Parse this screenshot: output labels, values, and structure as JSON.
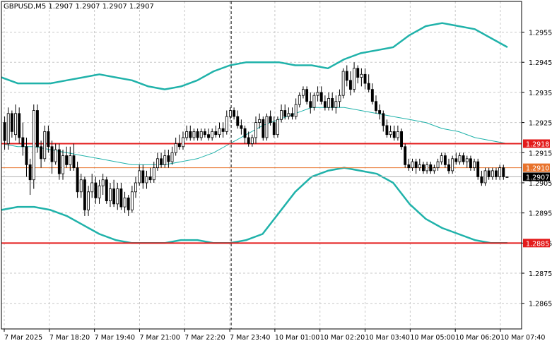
{
  "chart_data": {
    "type": "candlestick",
    "title": "GBPUSD,M5  1.2907 1.2907 1.2907 1.2907",
    "ylim": [
      1.28565,
      1.29652
    ],
    "grid": true,
    "y_ticks": [
      "1.2955",
      "1.2945",
      "1.2935",
      "1.2925",
      "1.2915",
      "1.2905",
      "1.2895",
      "1.2885",
      "1.2875",
      "1.2865"
    ],
    "x_ticks": [
      "7 Mar 2025",
      "7 Mar 18:20",
      "7 Mar 19:40",
      "7 Mar 21:00",
      "7 Mar 22:20",
      "7 Mar 23:40",
      "10 Mar 01:00",
      "10 Mar 02:20",
      "10 Mar 03:40",
      "10 Mar 05:00",
      "10 Mar 06:20",
      "10 Mar 07:40"
    ],
    "levels": [
      {
        "value": 1.2918,
        "label": "1.2918",
        "color": "#e31b1b"
      },
      {
        "value": 1.2885,
        "label": "1.2885",
        "color": "#e31b1b"
      },
      {
        "value": 1.291,
        "label": "1.2910",
        "color": "#e8732c"
      }
    ],
    "current_price": {
      "value": 1.2907,
      "label": "1.2907",
      "color": "#000000"
    },
    "bollinger": {
      "upper": [
        1.294,
        1.2938,
        1.2938,
        1.2938,
        1.2939,
        1.294,
        1.2941,
        1.294,
        1.2939,
        1.2937,
        1.2936,
        1.2937,
        1.2939,
        1.2942,
        1.2944,
        1.2945,
        1.2945,
        1.2945,
        1.2944,
        1.2944,
        1.2943,
        1.2946,
        1.2948,
        1.2949,
        1.295,
        1.2954,
        1.2957,
        1.2958,
        1.2957,
        1.2956,
        1.2953,
        1.295
      ],
      "middle": [
        1.2918,
        1.2917,
        1.2917,
        1.2916,
        1.2915,
        1.2914,
        1.2913,
        1.2912,
        1.2911,
        1.2911,
        1.2911,
        1.2912,
        1.2913,
        1.2915,
        1.2918,
        1.2921,
        1.2924,
        1.2926,
        1.2928,
        1.293,
        1.293,
        1.293,
        1.2929,
        1.2928,
        1.2927,
        1.2926,
        1.2925,
        1.2923,
        1.2922,
        1.292,
        1.2919,
        1.2918
      ],
      "lower": [
        1.2896,
        1.2897,
        1.2897,
        1.2896,
        1.2894,
        1.2891,
        1.2888,
        1.2886,
        1.2885,
        1.2885,
        1.2885,
        1.2886,
        1.2886,
        1.2885,
        1.2885,
        1.2886,
        1.2888,
        1.2895,
        1.2902,
        1.2907,
        1.2909,
        1.291,
        1.2909,
        1.2908,
        1.2905,
        1.2898,
        1.2893,
        1.289,
        1.2888,
        1.2886,
        1.2885,
        1.2885
      ]
    },
    "candles": [
      [
        1.2925,
        1.2927,
        1.2916,
        1.2919
      ],
      [
        1.2918,
        1.293,
        1.2916,
        1.2928
      ],
      [
        1.2928,
        1.2929,
        1.292,
        1.2922
      ],
      [
        1.2921,
        1.2931,
        1.2919,
        1.2928
      ],
      [
        1.2928,
        1.293,
        1.2918,
        1.292
      ],
      [
        1.292,
        1.2925,
        1.2914,
        1.2917
      ],
      [
        1.2917,
        1.292,
        1.2907,
        1.2911
      ],
      [
        1.2911,
        1.2913,
        1.2901,
        1.2906
      ],
      [
        1.2906,
        1.2931,
        1.2903,
        1.2929
      ],
      [
        1.2929,
        1.2931,
        1.2915,
        1.2917
      ],
      [
        1.2917,
        1.2919,
        1.291,
        1.2913
      ],
      [
        1.2913,
        1.2924,
        1.2912,
        1.2922
      ],
      [
        1.2922,
        1.2924,
        1.2915,
        1.2917
      ],
      [
        1.2917,
        1.2919,
        1.2908,
        1.2912
      ],
      [
        1.2912,
        1.2918,
        1.2911,
        1.2916
      ],
      [
        1.2916,
        1.2918,
        1.2906,
        1.2908
      ],
      [
        1.2908,
        1.2916,
        1.2906,
        1.2914
      ],
      [
        1.2914,
        1.2917,
        1.291,
        1.2911
      ],
      [
        1.2911,
        1.2917,
        1.2909,
        1.2914
      ],
      [
        1.2914,
        1.2918,
        1.2909,
        1.291
      ],
      [
        1.291,
        1.2912,
        1.29,
        1.2902
      ],
      [
        1.2902,
        1.2908,
        1.29,
        1.2906
      ],
      [
        1.2906,
        1.2907,
        1.2894,
        1.2896
      ],
      [
        1.2896,
        1.2904,
        1.2894,
        1.2902
      ],
      [
        1.2902,
        1.2908,
        1.29,
        1.2905
      ],
      [
        1.2905,
        1.2907,
        1.2898,
        1.29
      ],
      [
        1.29,
        1.2906,
        1.2898,
        1.2904
      ],
      [
        1.2904,
        1.2908,
        1.2901,
        1.2906
      ],
      [
        1.2906,
        1.2907,
        1.2898,
        1.2899
      ],
      [
        1.2899,
        1.2905,
        1.2897,
        1.2903
      ],
      [
        1.2903,
        1.2906,
        1.2897,
        1.2898
      ],
      [
        1.2898,
        1.2905,
        1.2896,
        1.2903
      ],
      [
        1.2903,
        1.2905,
        1.2896,
        1.2897
      ],
      [
        1.2897,
        1.2902,
        1.2895,
        1.29
      ],
      [
        1.29,
        1.2901,
        1.2894,
        1.2896
      ],
      [
        1.2896,
        1.2904,
        1.2895,
        1.2902
      ],
      [
        1.2902,
        1.2907,
        1.29,
        1.2905
      ],
      [
        1.2905,
        1.2911,
        1.2904,
        1.2909
      ],
      [
        1.2909,
        1.2911,
        1.2903,
        1.2905
      ],
      [
        1.2905,
        1.2909,
        1.2903,
        1.2907
      ],
      [
        1.2907,
        1.291,
        1.2905,
        1.2906
      ],
      [
        1.2906,
        1.2912,
        1.2905,
        1.291
      ],
      [
        1.291,
        1.2915,
        1.2909,
        1.2913
      ],
      [
        1.2913,
        1.2915,
        1.291,
        1.2911
      ],
      [
        1.2911,
        1.2916,
        1.291,
        1.2914
      ],
      [
        1.2914,
        1.2916,
        1.291,
        1.2912
      ],
      [
        1.2912,
        1.2917,
        1.2911,
        1.2915
      ],
      [
        1.2915,
        1.292,
        1.2914,
        1.2918
      ],
      [
        1.2918,
        1.2921,
        1.2916,
        1.2917
      ],
      [
        1.2917,
        1.2922,
        1.2916,
        1.292
      ],
      [
        1.292,
        1.2924,
        1.2919,
        1.2922
      ],
      [
        1.2922,
        1.2924,
        1.2919,
        1.292
      ],
      [
        1.292,
        1.2923,
        1.2919,
        1.2922
      ],
      [
        1.2922,
        1.2923,
        1.2919,
        1.292
      ],
      [
        1.292,
        1.2923,
        1.2919,
        1.2922
      ],
      [
        1.2922,
        1.2923,
        1.292,
        1.2921
      ],
      [
        1.2921,
        1.2923,
        1.2919,
        1.292
      ],
      [
        1.292,
        1.2923,
        1.2919,
        1.2922
      ],
      [
        1.2922,
        1.2924,
        1.292,
        1.2921
      ],
      [
        1.2921,
        1.2925,
        1.292,
        1.2923
      ],
      [
        1.2923,
        1.2925,
        1.292,
        1.2922
      ],
      [
        1.2922,
        1.2929,
        1.2921,
        1.2927
      ],
      [
        1.2927,
        1.293,
        1.2926,
        1.2929
      ],
      [
        1.2929,
        1.293,
        1.2926,
        1.2927
      ],
      [
        1.2927,
        1.2929,
        1.2923,
        1.2924
      ],
      [
        1.2924,
        1.2926,
        1.2921,
        1.2923
      ],
      [
        1.2923,
        1.2924,
        1.2918,
        1.292
      ],
      [
        1.292,
        1.2922,
        1.2917,
        1.2918
      ],
      [
        1.2918,
        1.2921,
        1.2917,
        1.292
      ],
      [
        1.292,
        1.2927,
        1.2918,
        1.2925
      ],
      [
        1.2925,
        1.2928,
        1.2923,
        1.2926
      ],
      [
        1.2926,
        1.2927,
        1.2919,
        1.292
      ],
      [
        1.292,
        1.2928,
        1.2919,
        1.2927
      ],
      [
        1.2927,
        1.2929,
        1.2924,
        1.2925
      ],
      [
        1.2925,
        1.2927,
        1.292,
        1.2921
      ],
      [
        1.2921,
        1.2927,
        1.292,
        1.2926
      ],
      [
        1.2926,
        1.2931,
        1.2925,
        1.2929
      ],
      [
        1.2929,
        1.2931,
        1.2926,
        1.2927
      ],
      [
        1.2927,
        1.293,
        1.2926,
        1.2928
      ],
      [
        1.2928,
        1.293,
        1.2926,
        1.2927
      ],
      [
        1.2927,
        1.2933,
        1.2926,
        1.2931
      ],
      [
        1.2931,
        1.2935,
        1.293,
        1.2934
      ],
      [
        1.2934,
        1.2937,
        1.2933,
        1.2936
      ],
      [
        1.2936,
        1.2937,
        1.2931,
        1.2932
      ],
      [
        1.2932,
        1.2935,
        1.2928,
        1.293
      ],
      [
        1.293,
        1.2935,
        1.2929,
        1.2934
      ],
      [
        1.2934,
        1.2937,
        1.2932,
        1.2935
      ],
      [
        1.2935,
        1.2937,
        1.2931,
        1.2932
      ],
      [
        1.2932,
        1.2934,
        1.2929,
        1.293
      ],
      [
        1.293,
        1.2935,
        1.2929,
        1.2933
      ],
      [
        1.2933,
        1.2935,
        1.2929,
        1.293
      ],
      [
        1.293,
        1.2934,
        1.2928,
        1.2932
      ],
      [
        1.2932,
        1.2936,
        1.293,
        1.2934
      ],
      [
        1.2934,
        1.2943,
        1.2933,
        1.2942
      ],
      [
        1.2942,
        1.2944,
        1.2937,
        1.2939
      ],
      [
        1.2939,
        1.2942,
        1.2934,
        1.2936
      ],
      [
        1.2936,
        1.2945,
        1.2935,
        1.2943
      ],
      [
        1.2943,
        1.2944,
        1.2938,
        1.294
      ],
      [
        1.294,
        1.2943,
        1.2937,
        1.2941
      ],
      [
        1.2941,
        1.2943,
        1.2936,
        1.2938
      ],
      [
        1.2938,
        1.2941,
        1.2935,
        1.2936
      ],
      [
        1.2936,
        1.2938,
        1.2931,
        1.2932
      ],
      [
        1.2932,
        1.2934,
        1.2928,
        1.2929
      ],
      [
        1.2929,
        1.2931,
        1.2926,
        1.2928
      ],
      [
        1.2928,
        1.2929,
        1.2922,
        1.2924
      ],
      [
        1.2924,
        1.2926,
        1.292,
        1.2921
      ],
      [
        1.2921,
        1.2924,
        1.292,
        1.2922
      ],
      [
        1.2922,
        1.2924,
        1.2919,
        1.292
      ],
      [
        1.292,
        1.2924,
        1.2919,
        1.2922
      ],
      [
        1.2922,
        1.2923,
        1.2916,
        1.2917
      ],
      [
        1.2917,
        1.2918,
        1.291,
        1.2911
      ],
      [
        1.2911,
        1.2913,
        1.2909,
        1.291
      ],
      [
        1.291,
        1.2913,
        1.2909,
        1.2912
      ],
      [
        1.2912,
        1.2913,
        1.2908,
        1.291
      ],
      [
        1.291,
        1.2913,
        1.2909,
        1.2911
      ],
      [
        1.2911,
        1.2912,
        1.2908,
        1.2909
      ],
      [
        1.2909,
        1.2912,
        1.2908,
        1.2911
      ],
      [
        1.2911,
        1.2912,
        1.2908,
        1.2909
      ],
      [
        1.2909,
        1.2911,
        1.2908,
        1.291
      ],
      [
        1.291,
        1.2913,
        1.2909,
        1.2912
      ],
      [
        1.2912,
        1.2915,
        1.2911,
        1.2914
      ],
      [
        1.2914,
        1.2915,
        1.291,
        1.2911
      ],
      [
        1.2911,
        1.2913,
        1.2908,
        1.2909
      ],
      [
        1.2909,
        1.2914,
        1.2908,
        1.2913
      ],
      [
        1.2913,
        1.2915,
        1.2911,
        1.2912
      ],
      [
        1.2912,
        1.2915,
        1.2911,
        1.2914
      ],
      [
        1.2914,
        1.2915,
        1.2911,
        1.2912
      ],
      [
        1.2912,
        1.2914,
        1.291,
        1.2913
      ],
      [
        1.2913,
        1.2914,
        1.2909,
        1.291
      ],
      [
        1.291,
        1.2913,
        1.2909,
        1.2912
      ],
      [
        1.2912,
        1.2913,
        1.2906,
        1.2907
      ],
      [
        1.2907,
        1.2909,
        1.2904,
        1.2905
      ],
      [
        1.2905,
        1.291,
        1.2904,
        1.2909
      ],
      [
        1.2909,
        1.291,
        1.2906,
        1.2907
      ],
      [
        1.2907,
        1.291,
        1.2906,
        1.2909
      ],
      [
        1.2909,
        1.291,
        1.2906,
        1.2907
      ],
      [
        1.2907,
        1.2911,
        1.2906,
        1.291
      ],
      [
        1.291,
        1.2911,
        1.2906,
        1.2907
      ],
      [
        1.2907,
        1.2907,
        1.2907,
        1.2907
      ]
    ]
  }
}
